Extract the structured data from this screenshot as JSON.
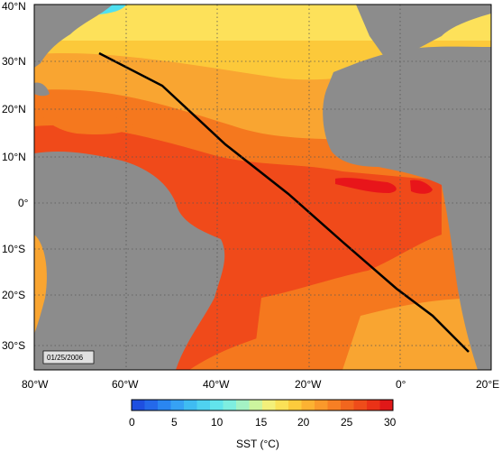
{
  "map": {
    "date_stamp": "01/25/2006",
    "lat_labels": [
      "40°N",
      "30°N",
      "20°N",
      "10°N",
      "0°",
      "10°S",
      "20°S",
      "30°S"
    ],
    "lon_labels": [
      "80°W",
      "60°W",
      "40°W",
      "20°W",
      "0°",
      "20°E"
    ],
    "colors": {
      "land": "#8c8c8c",
      "warm_core": "#f04a1a",
      "hot_spot": "#e8151a",
      "orange_mid": "#f5781e",
      "orange_light": "#f9a531",
      "yellow": "#fcc93a",
      "light_yellow": "#fde15a",
      "cyan": "#4fe0f0",
      "transect": "#000000"
    },
    "transect_note": "black transect line"
  },
  "colorbar": {
    "title": "SST (°C)",
    "ticks": [
      "0",
      "5",
      "10",
      "15",
      "20",
      "25",
      "30"
    ],
    "colors": [
      "#1e4fe0",
      "#2469ea",
      "#2a86f1",
      "#36a2f4",
      "#3fbcf2",
      "#4fd2f0",
      "#62e4ec",
      "#7eeee0",
      "#a4f2c4",
      "#ccf59e",
      "#f3f07a",
      "#fbe157",
      "#fccb3c",
      "#fcb232",
      "#fa992b",
      "#f77f24",
      "#f2661e",
      "#ee4c1a",
      "#ea3217",
      "#e01818"
    ]
  }
}
